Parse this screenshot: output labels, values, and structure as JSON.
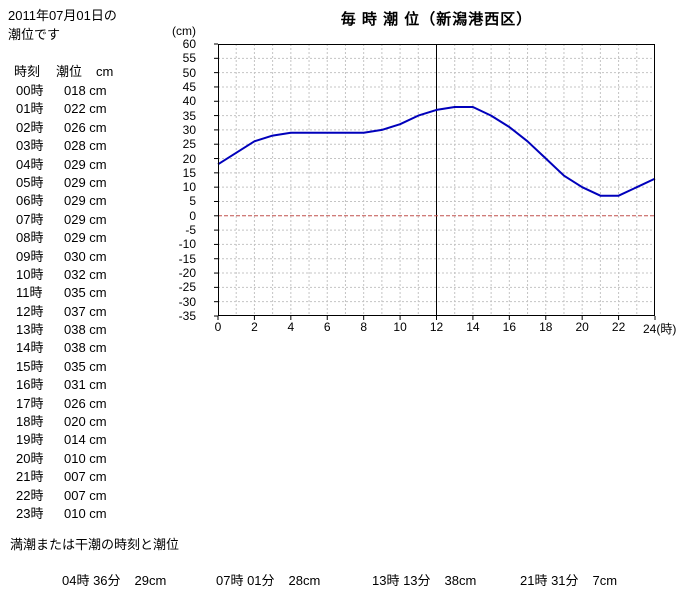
{
  "page": {
    "date_note_line1": "2011年07月01日の",
    "date_note_line2": "潮位です",
    "title": "毎 時 潮 位（新潟港西区）",
    "footer_label": "満潮または干潮の時刻と潮位"
  },
  "table": {
    "header": {
      "time": "時刻",
      "level": "潮位",
      "unit": "cm"
    },
    "rows": [
      {
        "time": "00時",
        "level": "018 cm"
      },
      {
        "time": "01時",
        "level": "022 cm"
      },
      {
        "time": "02時",
        "level": "026 cm"
      },
      {
        "time": "03時",
        "level": "028 cm"
      },
      {
        "time": "04時",
        "level": "029 cm"
      },
      {
        "time": "05時",
        "level": "029 cm"
      },
      {
        "time": "06時",
        "level": "029 cm"
      },
      {
        "time": "07時",
        "level": "029 cm"
      },
      {
        "time": "08時",
        "level": "029 cm"
      },
      {
        "time": "09時",
        "level": "030 cm"
      },
      {
        "time": "10時",
        "level": "032 cm"
      },
      {
        "time": "11時",
        "level": "035 cm"
      },
      {
        "time": "12時",
        "level": "037 cm"
      },
      {
        "time": "13時",
        "level": "038 cm"
      },
      {
        "time": "14時",
        "level": "038 cm"
      },
      {
        "time": "15時",
        "level": "035 cm"
      },
      {
        "time": "16時",
        "level": "031 cm"
      },
      {
        "time": "17時",
        "level": "026 cm"
      },
      {
        "time": "18時",
        "level": "020 cm"
      },
      {
        "time": "19時",
        "level": "014 cm"
      },
      {
        "time": "20時",
        "level": "010 cm"
      },
      {
        "time": "21時",
        "level": "007 cm"
      },
      {
        "time": "22時",
        "level": "007 cm"
      },
      {
        "time": "23時",
        "level": "010 cm"
      }
    ]
  },
  "chart_data": {
    "type": "line",
    "title": "毎 時 潮 位（新潟港西区）",
    "ylabel": "(cm)",
    "xlabel": "時",
    "x": [
      0,
      1,
      2,
      3,
      4,
      5,
      6,
      7,
      8,
      9,
      10,
      11,
      12,
      13,
      14,
      15,
      16,
      17,
      18,
      19,
      20,
      21,
      22,
      23,
      24
    ],
    "values": [
      18,
      22,
      26,
      28,
      29,
      29,
      29,
      29,
      29,
      30,
      32,
      35,
      37,
      38,
      38,
      35,
      31,
      26,
      20,
      14,
      10,
      7,
      7,
      10,
      13
    ],
    "ylim": [
      -35,
      60
    ],
    "xlim": [
      0,
      24
    ],
    "y_ticks": [
      60,
      55,
      50,
      45,
      40,
      35,
      30,
      25,
      20,
      15,
      10,
      5,
      0,
      -5,
      -10,
      -15,
      -20,
      -25,
      -30,
      -35
    ],
    "x_ticks": [
      0,
      2,
      4,
      6,
      8,
      10,
      12,
      14,
      16,
      18,
      20,
      22
    ],
    "x_axis_end_label": "24(時)",
    "grid": true,
    "legend": "none",
    "line_color": "#0000bb",
    "zero_line_color": "#c0504d",
    "noon_marker_hour": 12
  },
  "extremes": [
    {
      "time": "04時 36分",
      "level": "29cm"
    },
    {
      "time": "07時 01分",
      "level": "28cm"
    },
    {
      "time": "13時 13分",
      "level": "38cm"
    },
    {
      "time": "21時 31分",
      "level": "7cm"
    }
  ]
}
